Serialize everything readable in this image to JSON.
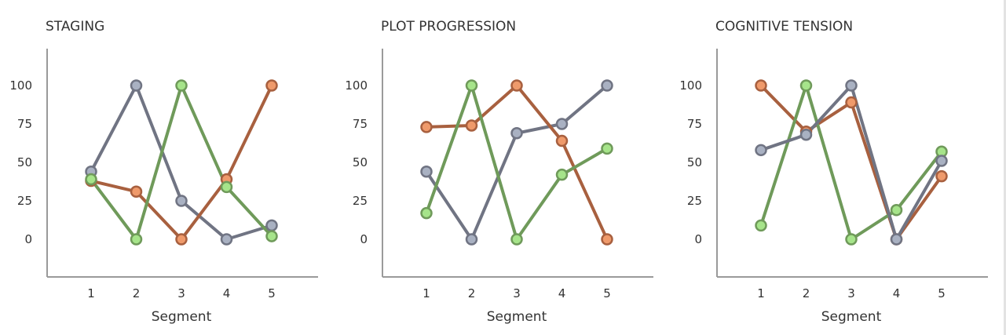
{
  "colors": {
    "orange": "#ef9a6b",
    "orange_stroke": "#a8603f",
    "green": "#a6e48a",
    "green_stroke": "#6f9a5a",
    "gray": "#a9b1c2",
    "gray_stroke": "#707483",
    "axis": "#9a9a9a"
  },
  "chart_data": [
    {
      "type": "line",
      "title": "STAGING",
      "xlabel": "Segment",
      "ylabel": "",
      "x": [
        1,
        2,
        3,
        4,
        5
      ],
      "yticks": [
        0,
        25,
        50,
        75,
        100
      ],
      "ylim": [
        -25,
        125
      ],
      "grid": false,
      "series": [
        {
          "color": "gray",
          "values": [
            44,
            100,
            25,
            0,
            9
          ]
        },
        {
          "color": "orange",
          "values": [
            38,
            31,
            0,
            39,
            100
          ]
        },
        {
          "color": "green",
          "values": [
            39,
            0,
            100,
            34,
            2
          ]
        }
      ]
    },
    {
      "type": "line",
      "title": "PLOT PROGRESSION",
      "xlabel": "Segment",
      "ylabel": "",
      "x": [
        1,
        2,
        3,
        4,
        5
      ],
      "yticks": [
        0,
        25,
        50,
        75,
        100
      ],
      "ylim": [
        -25,
        125
      ],
      "grid": false,
      "series": [
        {
          "color": "gray",
          "values": [
            44,
            0,
            69,
            75,
            100
          ]
        },
        {
          "color": "orange",
          "values": [
            73,
            74,
            100,
            64,
            0
          ]
        },
        {
          "color": "green",
          "values": [
            17,
            100,
            0,
            42,
            59
          ]
        }
      ]
    },
    {
      "type": "line",
      "title": "COGNITIVE TENSION",
      "xlabel": "Segment",
      "ylabel": "",
      "x": [
        1,
        2,
        3,
        4,
        5
      ],
      "yticks": [
        0,
        25,
        50,
        75,
        100
      ],
      "ylim": [
        -25,
        125
      ],
      "grid": false,
      "series": [
        {
          "color": "orange",
          "values": [
            100,
            70,
            89,
            0,
            41
          ]
        },
        {
          "color": "green",
          "values": [
            9,
            100,
            0,
            19,
            57
          ]
        },
        {
          "color": "gray",
          "values": [
            58,
            68,
            100,
            0,
            51
          ]
        }
      ]
    }
  ]
}
